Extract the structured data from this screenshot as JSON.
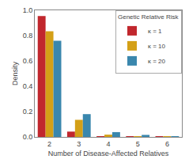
{
  "chart_data": {
    "type": "bar",
    "categories": [
      "2",
      "3",
      "4",
      "5",
      "6"
    ],
    "series": [
      {
        "name": "κ = 1",
        "color": "#c1272d",
        "values": [
          0.955,
          0.042,
          0.004,
          0.001,
          0.0003
        ]
      },
      {
        "name": "κ = 10",
        "color": "#d4a017",
        "values": [
          0.835,
          0.135,
          0.018,
          0.006,
          0.0005
        ]
      },
      {
        "name": "κ = 20",
        "color": "#3a87ad",
        "values": [
          0.76,
          0.18,
          0.038,
          0.016,
          0.001
        ]
      }
    ],
    "legend_title": "Genetic Relative Risk",
    "xlabel": "Number of Disease-Affected Relatives",
    "ylabel": "Density",
    "ylim": [
      0.0,
      1.0
    ],
    "yticks": [
      {
        "value": 0.0,
        "label": "0.0"
      },
      0.2,
      0.4,
      0.6,
      0.8,
      {
        "value": 1.0,
        "label": "1.0"
      }
    ],
    "grid": false,
    "legend": "upper right"
  }
}
